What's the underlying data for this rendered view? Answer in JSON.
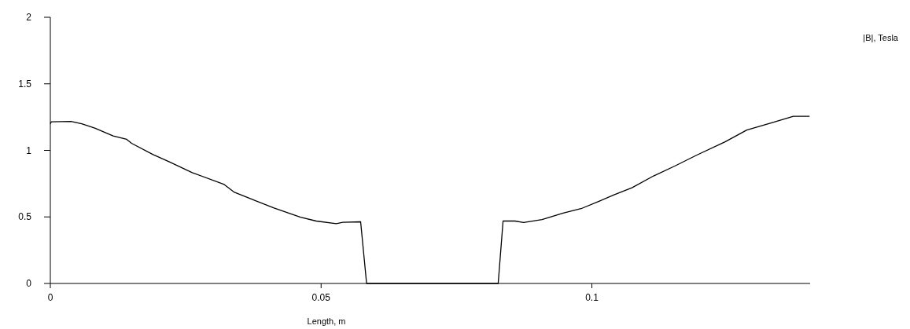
{
  "chart_data": {
    "type": "line",
    "xlabel": "Length, m",
    "annotations": [
      "|B|, Tesla"
    ],
    "xlim": [
      0,
      0.1403
    ],
    "xticks": [
      0,
      0.05,
      0.1
    ],
    "ylim": [
      0,
      2
    ],
    "yticks": [
      0,
      0.5,
      1,
      1.5,
      2
    ],
    "grid": false,
    "marker": "none",
    "line_style": "solid",
    "x": [
      0,
      0.0002,
      0.0038,
      0.0058,
      0.0082,
      0.0116,
      0.0141,
      0.015,
      0.0189,
      0.0219,
      0.0262,
      0.0321,
      0.034,
      0.037,
      0.0413,
      0.0462,
      0.0491,
      0.0528,
      0.054,
      0.0573,
      0.0584,
      0.0827,
      0.0836,
      0.0858,
      0.0874,
      0.0908,
      0.0947,
      0.098,
      0.1014,
      0.104,
      0.1074,
      0.1114,
      0.1153,
      0.1193,
      0.1246,
      0.1286,
      0.1332,
      0.1372,
      0.1402
    ],
    "series": [
      {
        "color": "#000000",
        "values": [
          1.2,
          1.215,
          1.218,
          1.2,
          1.167,
          1.108,
          1.083,
          1.053,
          0.97,
          0.915,
          0.833,
          0.744,
          0.685,
          0.636,
          0.567,
          0.498,
          0.469,
          0.449,
          0.459,
          0.463,
          0,
          0,
          0.469,
          0.469,
          0.458,
          0.48,
          0.529,
          0.562,
          0.619,
          0.665,
          0.719,
          0.808,
          0.882,
          0.963,
          1.064,
          1.153,
          1.207,
          1.256,
          1.256
        ]
      }
    ]
  }
}
